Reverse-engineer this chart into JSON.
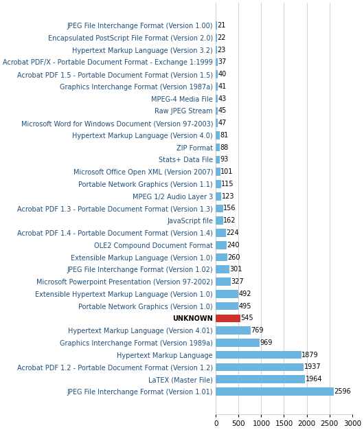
{
  "categories": [
    "JPEG File Interchange Format (Version 1.00)",
    "Encapsulated PostScript File Format (Version 2.0)",
    "Hypertext Markup Language (Version 3.2)",
    "Acrobat PDF/X - Portable Document Format - Exchange 1:1999",
    "Acrobat PDF 1.5 - Portable Document Format (Version 1.5)",
    "Graphics Interchange Format (Version 1987a)",
    "MPEG-4 Media File",
    "Raw JPEG Stream",
    "Microsoft Word for Windows Document (Version 97-2003)",
    "Hypertext Markup Language (Version 4.0)",
    "ZIP Format",
    "Stats+ Data File",
    "Microsoft Office Open XML (Version 2007)",
    "Portable Network Graphics (Version 1.1)",
    "MPEG 1/2 Audio Layer 3",
    "Acrobat PDF 1.3 - Portable Document Format (Version 1.3)",
    "JavaScript file",
    "Acrobat PDF 1.4 - Portable Document Format (Version 1.4)",
    "OLE2 Compound Document Format",
    "Extensible Markup Language (Version 1.0)",
    "JPEG File Interchange Format (Version 1.02)",
    "Microsoft Powerpoint Presentation (Version 97-2002)",
    "Extensible Hypertext Markup Language (Version 1.0)",
    "Portable Network Graphics (Version 1.0)",
    "UNKNOWN",
    "Hypertext Markup Language (Version 4.01)",
    "Graphics Interchange Format (Version 1989a)",
    "Hypertext Markup Language",
    "Acrobat PDF 1.2 - Portable Document Format (Version 1.2)",
    "LaTEX (Master File)",
    "JPEG File Interchange Format (Version 1.01)"
  ],
  "values": [
    21,
    22,
    23,
    37,
    40,
    41,
    43,
    45,
    47,
    81,
    88,
    93,
    101,
    115,
    123,
    156,
    162,
    224,
    240,
    260,
    301,
    327,
    492,
    495,
    545,
    769,
    969,
    1879,
    1937,
    1964,
    2596
  ],
  "bar_colors": [
    "#6BB5E0",
    "#6BB5E0",
    "#6BB5E0",
    "#6BB5E0",
    "#6BB5E0",
    "#6BB5E0",
    "#6BB5E0",
    "#6BB5E0",
    "#6BB5E0",
    "#6BB5E0",
    "#6BB5E0",
    "#6BB5E0",
    "#6BB5E0",
    "#6BB5E0",
    "#6BB5E0",
    "#6BB5E0",
    "#6BB5E0",
    "#6BB5E0",
    "#6BB5E0",
    "#6BB5E0",
    "#6BB5E0",
    "#6BB5E0",
    "#6BB5E0",
    "#6BB5E0",
    "#D0312D",
    "#6BB5E0",
    "#6BB5E0",
    "#6BB5E0",
    "#6BB5E0",
    "#6BB5E0",
    "#6BB5E0"
  ],
  "label_colors": [
    "#1F4E79",
    "#1F4E79",
    "#1F4E79",
    "#1F4E79",
    "#1F4E79",
    "#1F4E79",
    "#1F4E79",
    "#1F4E79",
    "#1F4E79",
    "#1F4E79",
    "#1F4E79",
    "#1F4E79",
    "#1F4E79",
    "#1F4E79",
    "#1F4E79",
    "#1F4E79",
    "#1F4E79",
    "#1F4E79",
    "#1F4E79",
    "#1F4E79",
    "#1F4E79",
    "#1F4E79",
    "#1F4E79",
    "#1F4E79",
    "#000000",
    "#1F4E79",
    "#1F4E79",
    "#1F4E79",
    "#1F4E79",
    "#1F4E79",
    "#1F4E79"
  ],
  "label_bold": [
    false,
    false,
    false,
    false,
    false,
    false,
    false,
    false,
    false,
    false,
    false,
    false,
    false,
    false,
    false,
    false,
    false,
    false,
    false,
    false,
    false,
    false,
    false,
    false,
    true,
    false,
    false,
    false,
    false,
    false,
    false
  ],
  "xlim": [
    0,
    3000
  ],
  "xticks": [
    0,
    500,
    1000,
    1500,
    2000,
    2500,
    3000
  ],
  "value_fontsize": 7.0,
  "label_fontsize": 7.0,
  "background_color": "#FFFFFF",
  "grid_color": "#C0C0C0"
}
